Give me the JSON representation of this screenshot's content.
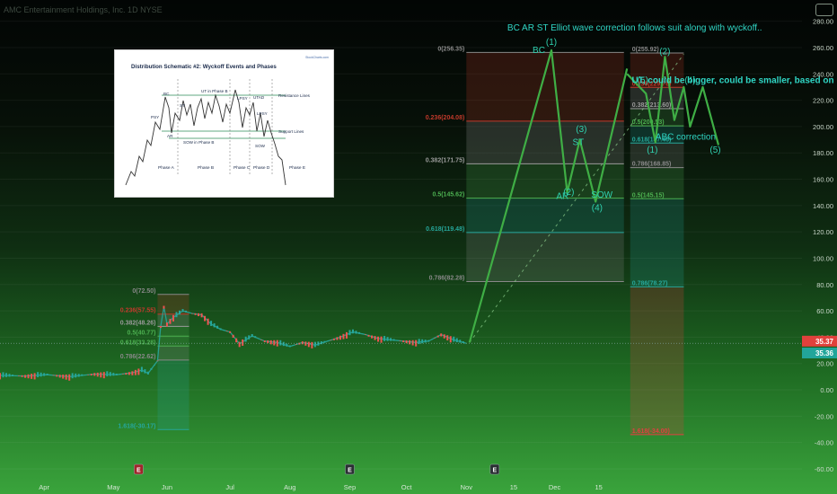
{
  "header": {
    "line1": "AMC Entertainment Holdings, Inc. 1D NYSE",
    "line2": "",
    "line3": "",
    "line4": ""
  },
  "colors": {
    "wave": "#3fae45",
    "wave_label": "#2fd2b0",
    "note": "#30d6c5",
    "candle_up": "#26a69a",
    "candle_down": "#ef5350",
    "price_badge": "#e0413c",
    "price_badge2": "#22a59a"
  },
  "chart_data": {
    "type": "line",
    "title": "",
    "xlabel": "",
    "ylabel": "",
    "ylim": [
      -60,
      290
    ],
    "y_ticks": [
      -60,
      -40,
      -20,
      0,
      20,
      40,
      60,
      80,
      100,
      120,
      140,
      160,
      180,
      200,
      220,
      240,
      260,
      280
    ],
    "y_tick_labels": [
      "-60.00",
      "-40.00",
      "-20.00",
      "0.00",
      "20.00",
      "40.00",
      "60.00",
      "80.00",
      "100.00",
      "120.00",
      "140.00",
      "160.00",
      "180.00",
      "200.00",
      "220.00",
      "240.00",
      "260.00",
      "280.00"
    ],
    "x_labels": [
      "Apr",
      "May",
      "Jun",
      "Jul",
      "Aug",
      "Sep",
      "Oct",
      "Nov",
      "15",
      "Dec",
      "15"
    ],
    "price_labels": [
      "35.37",
      "35.36"
    ],
    "price_series": [
      {
        "t": 0,
        "p": 11
      },
      {
        "t": 8,
        "p": 10.5
      },
      {
        "t": 15,
        "p": 11.5
      },
      {
        "t": 22,
        "p": 10
      },
      {
        "t": 30,
        "p": 12
      },
      {
        "t": 37,
        "p": 11.5
      },
      {
        "t": 42,
        "p": 13
      },
      {
        "t": 45,
        "p": 15
      },
      {
        "t": 47,
        "p": 12.5
      },
      {
        "t": 50,
        "p": 22
      },
      {
        "t": 51,
        "p": 48
      },
      {
        "t": 52,
        "p": 63
      },
      {
        "t": 53,
        "p": 50
      },
      {
        "t": 55,
        "p": 55
      },
      {
        "t": 58,
        "p": 60
      },
      {
        "t": 61,
        "p": 58
      },
      {
        "t": 64,
        "p": 57
      },
      {
        "t": 67,
        "p": 50
      },
      {
        "t": 70,
        "p": 46
      },
      {
        "t": 73,
        "p": 44
      },
      {
        "t": 76,
        "p": 35
      },
      {
        "t": 80,
        "p": 41
      },
      {
        "t": 84,
        "p": 37
      },
      {
        "t": 88,
        "p": 36
      },
      {
        "t": 92,
        "p": 33
      },
      {
        "t": 96,
        "p": 36
      },
      {
        "t": 100,
        "p": 34
      },
      {
        "t": 104,
        "p": 37
      },
      {
        "t": 108,
        "p": 40
      },
      {
        "t": 112,
        "p": 44
      },
      {
        "t": 116,
        "p": 42
      },
      {
        "t": 120,
        "p": 39
      },
      {
        "t": 124,
        "p": 38
      },
      {
        "t": 128,
        "p": 37
      },
      {
        "t": 132,
        "p": 36
      },
      {
        "t": 136,
        "p": 37
      },
      {
        "t": 140,
        "p": 42
      },
      {
        "t": 144,
        "p": 38
      },
      {
        "t": 148,
        "p": 35.4
      }
    ],
    "fib_sets": [
      {
        "name": "jun",
        "t0": 50,
        "t1": 60,
        "levels": [
          {
            "label": "0(72.50)",
            "value": 72.5,
            "color": "#888888"
          },
          {
            "label": "0.236(57.55)",
            "value": 57.55,
            "color": "#c0392b"
          },
          {
            "label": "0.382(48.26)",
            "value": 48.26,
            "color": "#9a9a9a"
          },
          {
            "label": "0.5(40.77)",
            "value": 40.77,
            "color": "#4caf50"
          },
          {
            "label": "0.618(33.28)",
            "value": 33.28,
            "color": "#4caf50"
          },
          {
            "label": "0.786(22.62)",
            "value": 22.62,
            "color": "#888888"
          },
          {
            "label": "1.618(-30.17)",
            "value": -30.17,
            "color": "#26a69a"
          }
        ]
      },
      {
        "name": "nov",
        "t0": 148,
        "t1": 198,
        "levels": [
          {
            "label": "0(256.35)",
            "value": 256.35,
            "color": "#888888"
          },
          {
            "label": "0.236(204.08)",
            "value": 204.08,
            "color": "#c0392b"
          },
          {
            "label": "0.382(171.75)",
            "value": 171.75,
            "color": "#9a9a9a"
          },
          {
            "label": "0.5(145.62)",
            "value": 145.62,
            "color": "#4caf50"
          },
          {
            "label": "0.618(119.48)",
            "value": 119.48,
            "color": "#26a69a"
          },
          {
            "label": "0.786(82.28)",
            "value": 82.28,
            "color": "#888888"
          }
        ]
      },
      {
        "name": "dec",
        "t0": 200,
        "t1": 217,
        "levels": [
          {
            "label": "0(255.92)",
            "value": 255.92,
            "color": "#888888"
          },
          {
            "label": "0.236(229.78)",
            "value": 229.78,
            "color": "#c0392b"
          },
          {
            "label": "0.382(213.60)",
            "value": 213.6,
            "color": "#9a9a9a"
          },
          {
            "label": "0.5(200.53)",
            "value": 200.53,
            "color": "#4caf50"
          },
          {
            "label": "0.618(187.46)",
            "value": 187.46,
            "color": "#26a69a"
          },
          {
            "label": "0.786(168.85)",
            "value": 168.85,
            "color": "#888888"
          },
          {
            "label": "0.5(145.15)",
            "value": 145.15,
            "color": "#4caf50"
          },
          {
            "label": "0.786(78.27)",
            "value": 78.27,
            "color": "#26a69a"
          },
          {
            "label": "1.618(-34.00)",
            "value": -34.0,
            "color": "#e04040"
          }
        ]
      }
    ],
    "projection_main": [
      {
        "t": 149,
        "p": 36
      },
      {
        "t": 175,
        "p": 258
      },
      {
        "t": 180,
        "p": 150
      },
      {
        "t": 184,
        "p": 190
      },
      {
        "t": 189,
        "p": 143
      },
      {
        "t": 199,
        "p": 244
      }
    ],
    "projection_right": [
      {
        "t": 199,
        "p": 240
      },
      {
        "t": 205,
        "p": 225
      },
      {
        "t": 208,
        "p": 188
      },
      {
        "t": 211,
        "p": 253
      },
      {
        "t": 214,
        "p": 205
      },
      {
        "t": 217,
        "p": 230
      },
      {
        "t": 219,
        "p": 200
      },
      {
        "t": 223,
        "p": 230
      },
      {
        "t": 228,
        "p": 186
      }
    ],
    "dashed_trend": [
      {
        "t": 149,
        "p": 36
      },
      {
        "t": 217,
        "p": 255
      }
    ],
    "wave_labels": [
      {
        "text": "(1)",
        "t": 175,
        "p": 262
      },
      {
        "text": "BC",
        "t": 171,
        "p": 256
      },
      {
        "text": "(2)",
        "t": 180.5,
        "p": 148
      },
      {
        "text": "AR",
        "t": 178.5,
        "p": 145
      },
      {
        "text": "(3)",
        "t": 184.5,
        "p": 196
      },
      {
        "text": "ST",
        "t": 183.5,
        "p": 186
      },
      {
        "text": "(4)",
        "t": 189.5,
        "p": 136
      },
      {
        "text": "SOW",
        "t": 191,
        "p": 146
      },
      {
        "text": "(5)",
        "t": 204,
        "p": 233
      },
      {
        "text": "(2)",
        "t": 211,
        "p": 255
      },
      {
        "text": "(4)",
        "t": 219,
        "p": 233
      },
      {
        "text": "(1)",
        "t": 207,
        "p": 180
      },
      {
        "text": "(5)",
        "t": 227,
        "p": 180
      }
    ],
    "annotations": [
      {
        "text": "BC AR ST Elliot wave correction follows suit along with wyckoff..",
        "t": 161,
        "p": 273
      },
      {
        "text": "UT, could be bigger, could be smaller, based on past squeeze:",
        "t": 200.5,
        "p": 233
      },
      {
        "text": "ABC correction",
        "t": 208,
        "p": 190
      }
    ],
    "earnings_markers": [
      {
        "t": 44,
        "text": "E",
        "color": "#a0262a"
      },
      {
        "t": 111,
        "text": "E",
        "color": "#2a2f33"
      },
      {
        "t": 157,
        "text": "E",
        "color": "#2a2f33"
      }
    ]
  },
  "inset": {
    "title": "Distribution Schematic #2: Wyckoff Events and Phases",
    "brand": "StockCharts.com",
    "events": [
      "BC",
      "UT in Phase B",
      "PSY",
      "ST",
      "LPSY",
      "Resistance Lines",
      "UTAD",
      "AR",
      "SOW in Phase B",
      "LPSY",
      "Support Lines",
      "SOW"
    ],
    "phases": [
      "Phase A",
      "Phase B",
      "Phase C",
      "Phase D",
      "Phase E"
    ]
  }
}
